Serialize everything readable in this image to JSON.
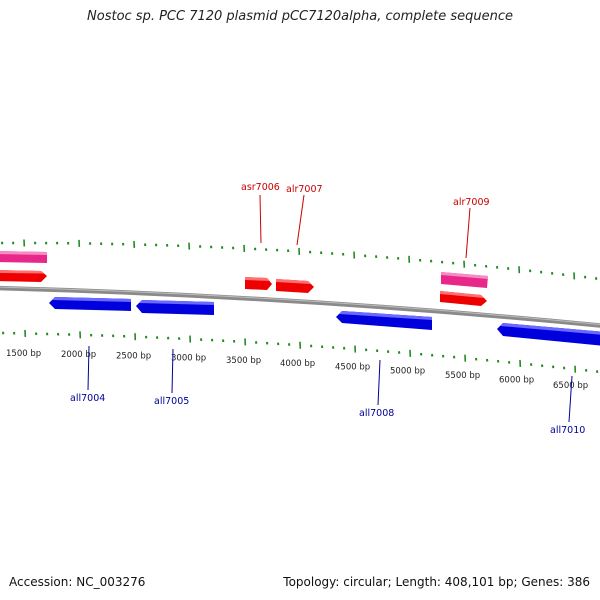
{
  "title": "Nostoc sp. PCC 7120 plasmid pCC7120alpha, complete sequence",
  "footer": {
    "accession": "Accession: NC_003276",
    "summary": "Topology: circular; Length: 408,101 bp; Genes: 386"
  },
  "colors": {
    "forward_gene": "#ee0000",
    "forward_gene_alt": "#e8278a",
    "reverse_gene": "#0000dd",
    "tick": "#228b22",
    "backbone": "#808080",
    "top_label": "#cc0000",
    "bottom_label": "#000099"
  },
  "scale_labels": [
    "1500 bp",
    "2000 bp",
    "2500 bp",
    "3000 bp",
    "3500 bp",
    "4000 bp",
    "4500 bp",
    "5000 bp",
    "5500 bp",
    "6000 bp",
    "6500 bp"
  ],
  "top_gene_labels": [
    "asr7006",
    "alr7007",
    "alr7009"
  ],
  "bottom_gene_labels": [
    "all7004",
    "all7005",
    "all7008",
    "all7010"
  ]
}
